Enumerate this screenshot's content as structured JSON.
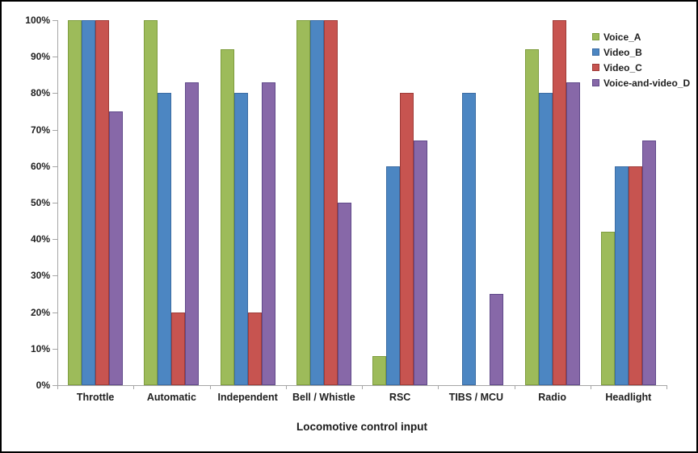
{
  "chart_data": {
    "type": "bar",
    "title": "",
    "xlabel": "Locomotive control input",
    "ylabel": "",
    "ylim": [
      0,
      100
    ],
    "ytick_step": 10,
    "ytick_suffix": "%",
    "grid": false,
    "legend_position": "top-right",
    "axis_color": "#a6a6a6",
    "text_color": "#1f1f1f",
    "categories": [
      "Throttle",
      "Automatic",
      "Independent",
      "Bell / Whistle",
      "RSC",
      "TIBS / MCU",
      "Radio",
      "Headlight"
    ],
    "series": [
      {
        "name": "Voice_A",
        "color": "#9dbb5a",
        "border_color": "#7e9d3e",
        "values": [
          100,
          100,
          92,
          100,
          8,
          0,
          92,
          42
        ]
      },
      {
        "name": "Video_B",
        "color": "#4c86c2",
        "border_color": "#3b6ca3",
        "values": [
          100,
          80,
          80,
          100,
          60,
          80,
          80,
          60
        ]
      },
      {
        "name": "Video_C",
        "color": "#c75450",
        "border_color": "#9e3b38",
        "values": [
          100,
          20,
          20,
          100,
          80,
          0,
          100,
          60
        ]
      },
      {
        "name": "Voice-and-video_D",
        "color": "#8768a8",
        "border_color": "#60498a",
        "values": [
          75,
          83,
          83,
          50,
          67,
          25,
          83,
          67
        ]
      }
    ]
  }
}
